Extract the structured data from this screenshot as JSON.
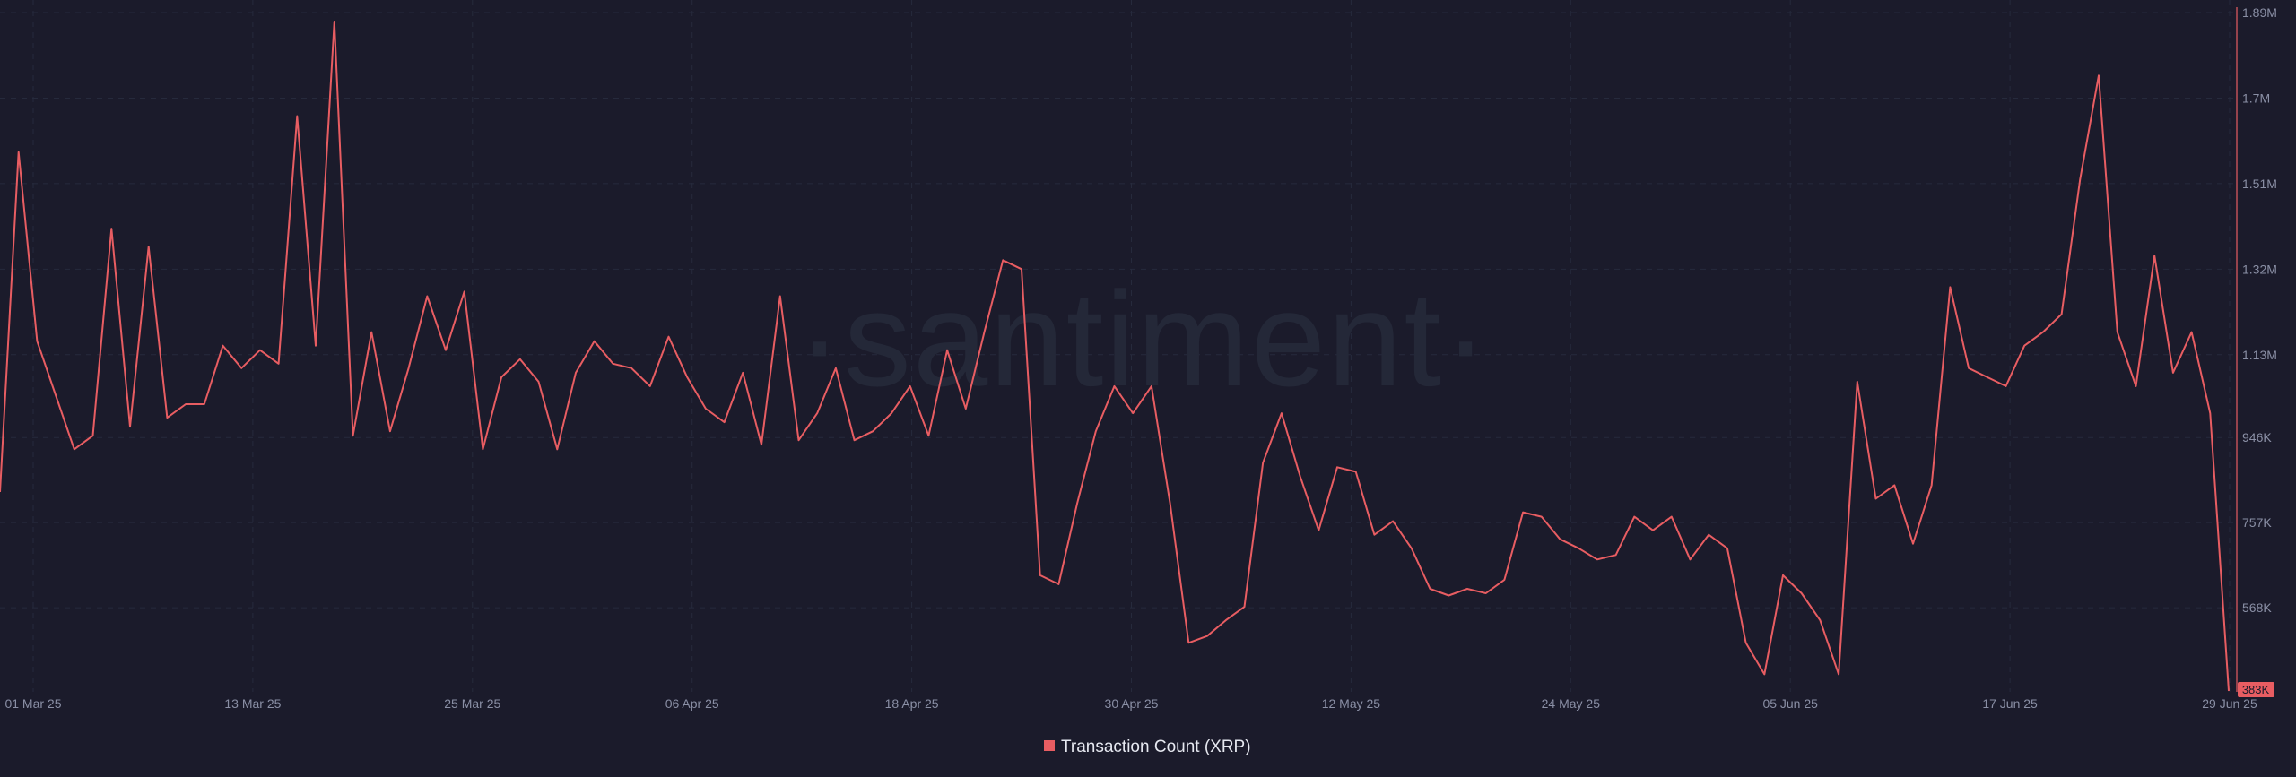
{
  "watermark": "·santiment·",
  "colors": {
    "background": "#1b1b2b",
    "line": "#e85d62",
    "last_badge": "#e85d62",
    "grid": "#262a3c",
    "tick_text": "#8a8fa5",
    "legend_text": "#e6e8f0"
  },
  "chart_data": {
    "type": "line",
    "title": "",
    "xlabel": "",
    "ylabel": "",
    "ylim": [
      383000,
      1890000
    ],
    "grid": true,
    "legend_position": "bottom-center",
    "y_ticks": [
      "1.89M",
      "1.7M",
      "1.51M",
      "1.32M",
      "1.13M",
      "946K",
      "757K",
      "568K"
    ],
    "y_tick_values": [
      1890000,
      1700000,
      1510000,
      1320000,
      1130000,
      946000,
      757000,
      568000
    ],
    "x_ticks": [
      "01 Mar 25",
      "13 Mar 25",
      "25 Mar 25",
      "06 Apr 25",
      "18 Apr 25",
      "30 Apr 25",
      "12 May 25",
      "24 May 25",
      "05 Jun 25",
      "17 Jun 25",
      "29 Jun 25"
    ],
    "last_value_label": "383K",
    "series": [
      {
        "name": "Transaction Count (XRP)",
        "x_start": "01 Mar 25",
        "x_end": "29 Jun 25",
        "values": [
          825000,
          1580000,
          1160000,
          1040000,
          920000,
          950000,
          1410000,
          970000,
          1370000,
          990000,
          1020000,
          1020000,
          1150000,
          1100000,
          1140000,
          1110000,
          1660000,
          1150000,
          1870000,
          950000,
          1180000,
          960000,
          1100000,
          1260000,
          1140000,
          1270000,
          920000,
          1080000,
          1120000,
          1070000,
          920000,
          1090000,
          1160000,
          1110000,
          1100000,
          1060000,
          1170000,
          1080000,
          1010000,
          980000,
          1090000,
          930000,
          1260000,
          940000,
          1000000,
          1100000,
          940000,
          960000,
          1000000,
          1060000,
          950000,
          1140000,
          1010000,
          1180000,
          1340000,
          1320000,
          640000,
          620000,
          800000,
          960000,
          1060000,
          1000000,
          1060000,
          800000,
          490000,
          505000,
          540000,
          570000,
          890000,
          1000000,
          860000,
          740000,
          880000,
          870000,
          730000,
          760000,
          700000,
          610000,
          595000,
          610000,
          600000,
          630000,
          780000,
          770000,
          720000,
          700000,
          675000,
          685000,
          770000,
          740000,
          770000,
          675000,
          730000,
          700000,
          490000,
          420000,
          640000,
          600000,
          540000,
          420000,
          1070000,
          810000,
          840000,
          710000,
          840000,
          1280000,
          1100000,
          1080000,
          1060000,
          1150000,
          1180000,
          1220000,
          1520000,
          1750000,
          1180000,
          1060000,
          1350000,
          1090000,
          1180000,
          1000000,
          383000
        ]
      }
    ]
  }
}
